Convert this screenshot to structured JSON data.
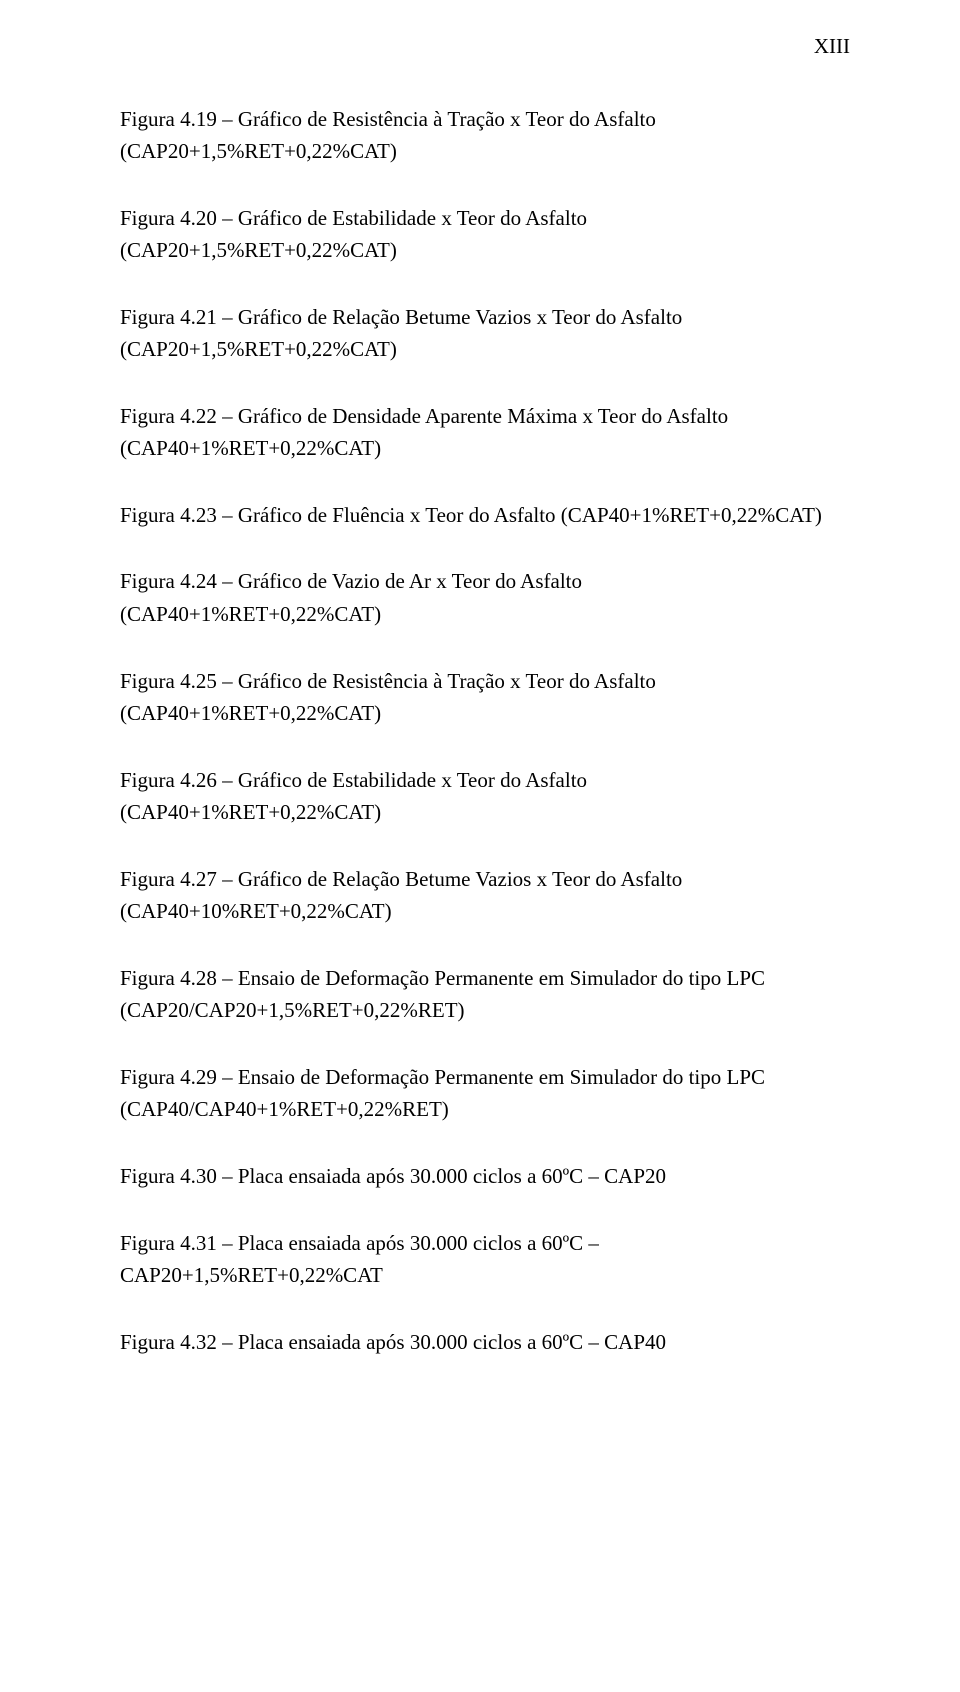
{
  "page_number": "XIII",
  "entries": [
    {
      "line1": "Figura 4.19 – Gráfico de Resistência à Tração x Teor do Asfalto",
      "line2": "(CAP20+1,5%RET+0,22%CAT)"
    },
    {
      "line1": "Figura 4.20 – Gráfico de Estabilidade x Teor do Asfalto",
      "line2": "(CAP20+1,5%RET+0,22%CAT)"
    },
    {
      "line1": "Figura 4.21 – Gráfico de Relação Betume Vazios x Teor do Asfalto",
      "line2": "(CAP20+1,5%RET+0,22%CAT)"
    },
    {
      "line1": "Figura 4.22 – Gráfico de Densidade Aparente Máxima x Teor do Asfalto",
      "line2": "(CAP40+1%RET+0,22%CAT)"
    },
    {
      "line1": "Figura 4.23 – Gráfico de Fluência x Teor do Asfalto (CAP40+1%RET+0,22%CAT)",
      "line2": ""
    },
    {
      "line1": "Figura 4.24 – Gráfico de Vazio de Ar x Teor do Asfalto",
      "line2": "(CAP40+1%RET+0,22%CAT)"
    },
    {
      "line1": "Figura 4.25 – Gráfico de Resistência à Tração x Teor do Asfalto",
      "line2": "(CAP40+1%RET+0,22%CAT)"
    },
    {
      "line1": "Figura 4.26 – Gráfico de Estabilidade x Teor do Asfalto",
      "line2": "(CAP40+1%RET+0,22%CAT)"
    },
    {
      "line1": "Figura 4.27 – Gráfico de Relação Betume Vazios x Teor do Asfalto",
      "line2": "(CAP40+10%RET+0,22%CAT)"
    },
    {
      "line1": "Figura 4.28 – Ensaio de Deformação Permanente em Simulador do tipo LPC",
      "line2": "(CAP20/CAP20+1,5%RET+0,22%RET)"
    },
    {
      "line1": "Figura 4.29 – Ensaio de Deformação Permanente em Simulador do tipo LPC",
      "line2": "(CAP40/CAP40+1%RET+0,22%RET)"
    },
    {
      "line1": "Figura 4.30 – Placa ensaiada após 30.000 ciclos a 60ºC – CAP20",
      "line2": ""
    },
    {
      "line1": "Figura 4.31 – Placa ensaiada após 30.000 ciclos a 60ºC –",
      "line2": "CAP20+1,5%RET+0,22%CAT"
    },
    {
      "line1": "Figura 4.32 – Placa ensaiada após 30.000 ciclos a 60ºC – CAP40",
      "line2": ""
    }
  ]
}
